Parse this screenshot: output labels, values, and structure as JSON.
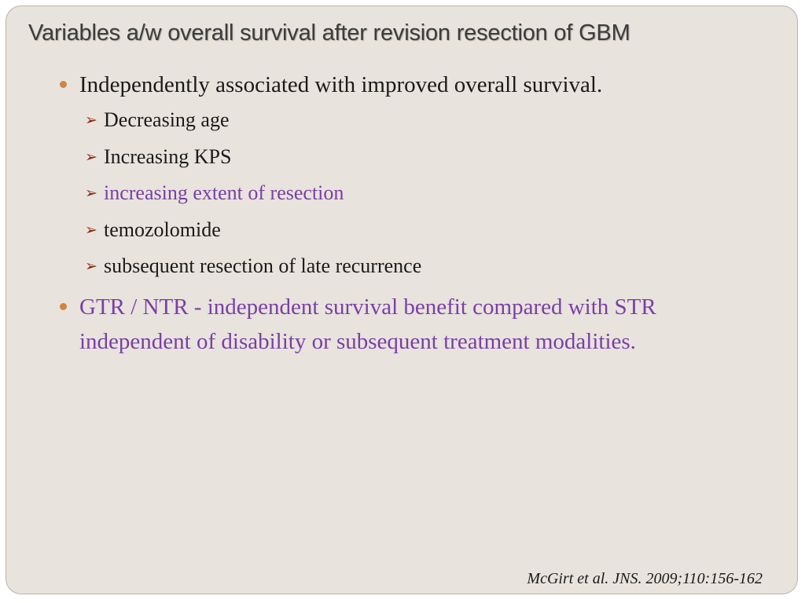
{
  "slide": {
    "title": "Variables a/w overall survival after revision resection of GBM",
    "bullets": [
      {
        "text": "Independently associated with improved overall survival.",
        "color": "#1a1a1a",
        "sub_items": [
          {
            "text": "Decreasing age",
            "color": "#1a1a1a"
          },
          {
            "text": "Increasing KPS",
            "color": "#1a1a1a"
          },
          {
            "text": "increasing extent of resection",
            "color": "#7a3fa6"
          },
          {
            "text": "temozolomide",
            "color": "#1a1a1a"
          },
          {
            "text": "subsequent resection of late recurrence",
            "color": "#1a1a1a"
          }
        ]
      },
      {
        "text": "GTR / NTR - independent survival benefit compared with STR independent of disability or subsequent treatment modalities.",
        "color": "#7a3fa6"
      }
    ],
    "citation": "McGirt et al. JNS. 2009;110:156-162",
    "bullet_color": "#d1833f",
    "arrow_color": "#8a2a10",
    "background_color": "#e8e3dd"
  }
}
